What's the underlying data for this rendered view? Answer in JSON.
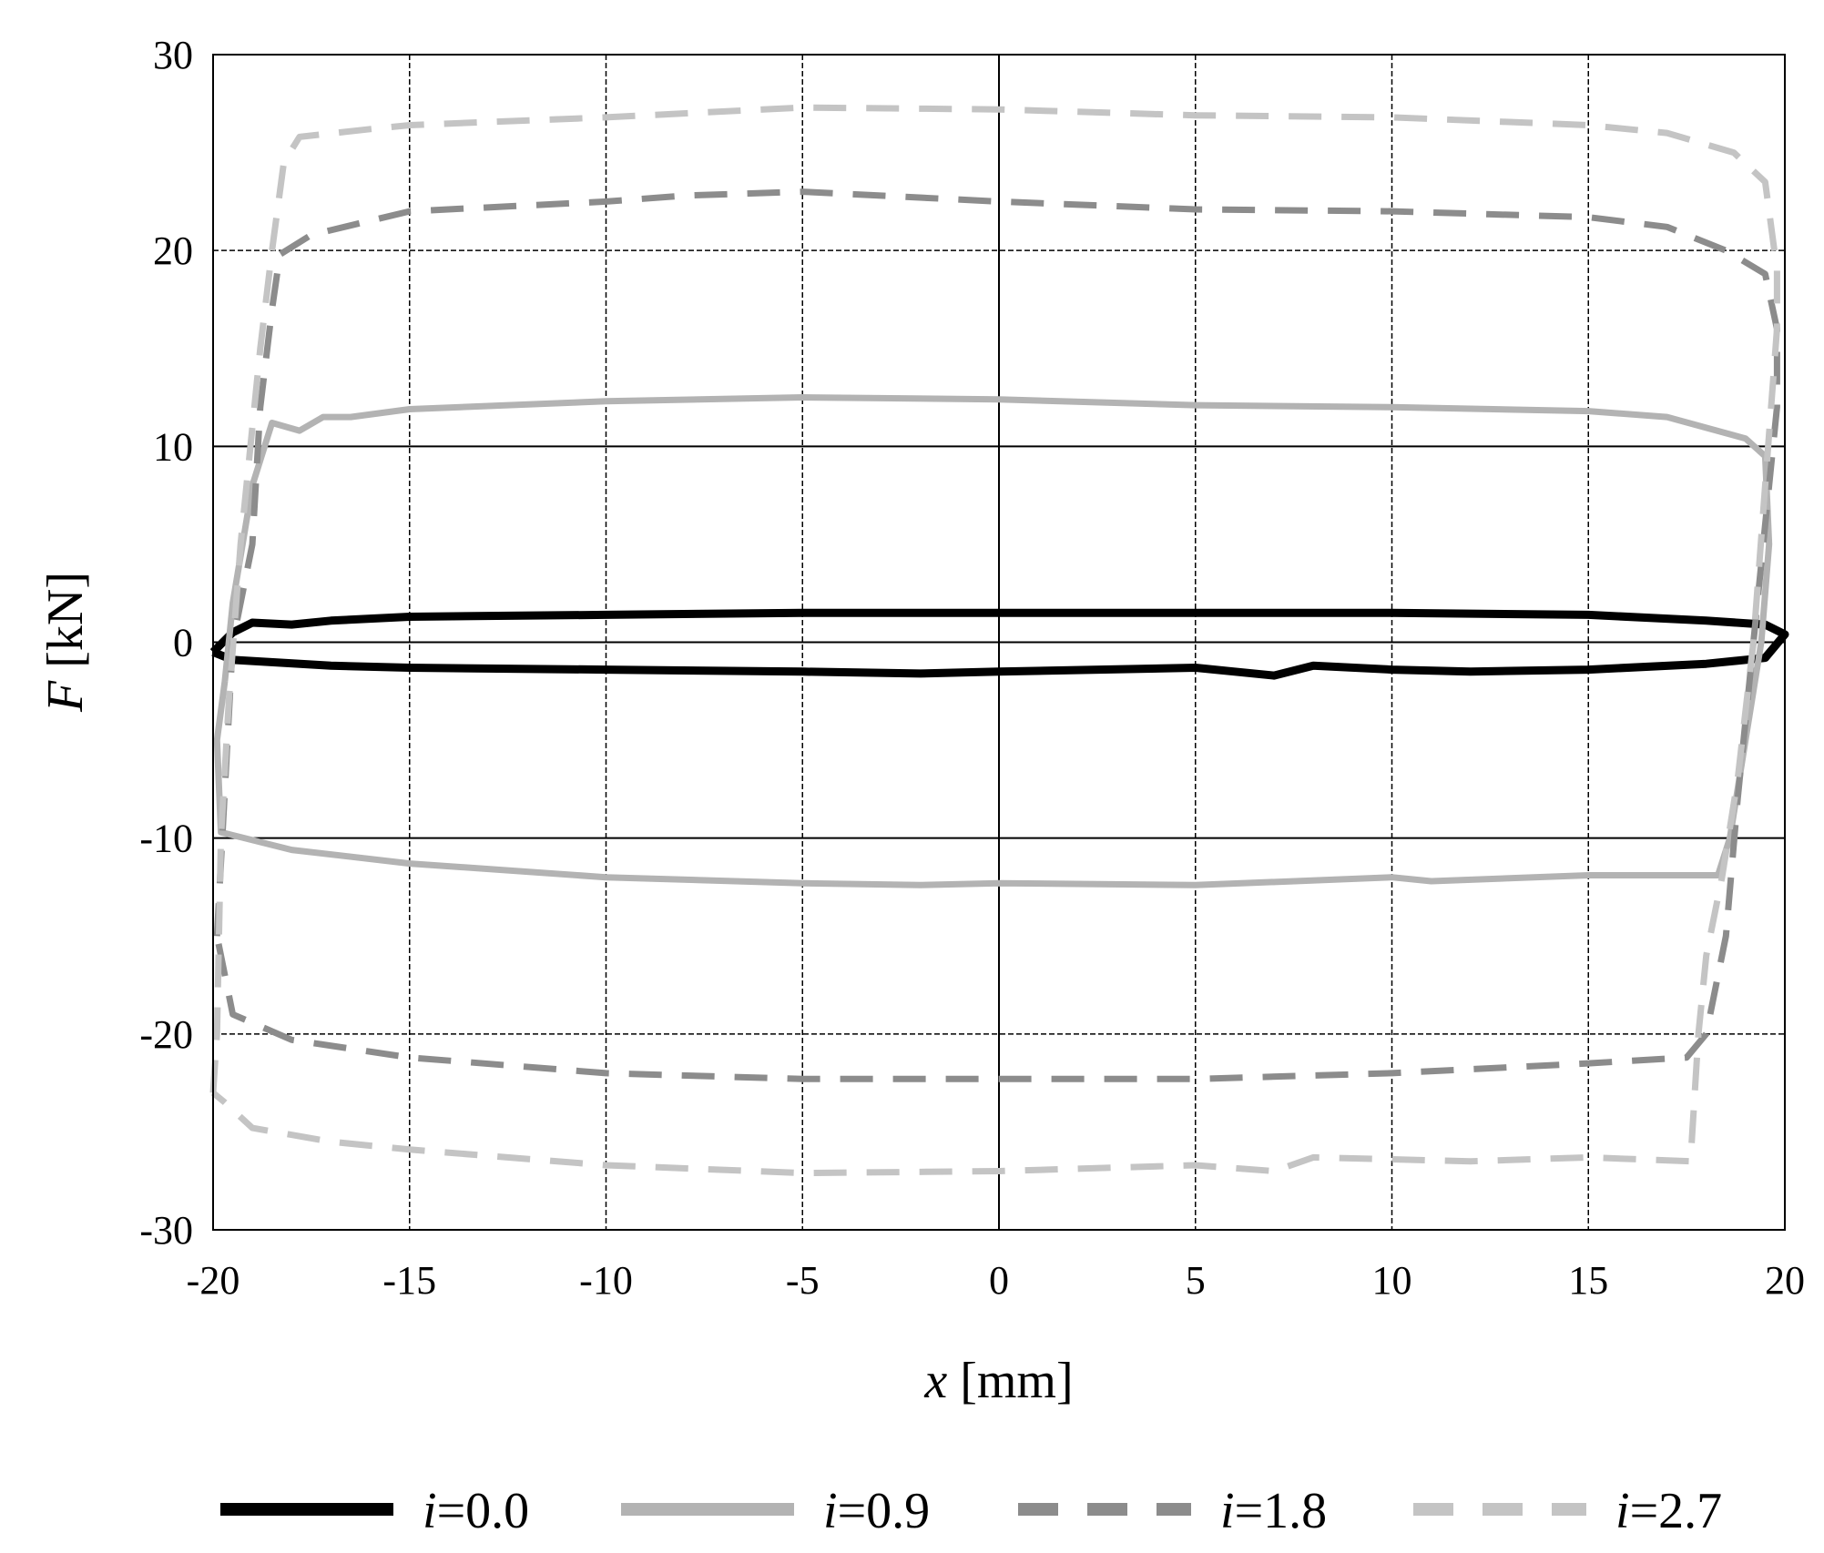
{
  "chart_data": {
    "type": "line",
    "xlabel": {
      "var": "x",
      "unit": " [mm]"
    },
    "ylabel": {
      "var": "F",
      "unit": " [kN]"
    },
    "xlim": [
      -20,
      20
    ],
    "ylim": [
      -30,
      30
    ],
    "xticks": [
      -20,
      -15,
      -10,
      -5,
      0,
      5,
      10,
      15,
      20
    ],
    "yticks": [
      -30,
      -20,
      -10,
      0,
      10,
      20,
      30
    ],
    "grid": true,
    "legend_placement": "bottom",
    "series": [
      {
        "name": "=0.0",
        "name_var": "i",
        "color": "#000000",
        "style": "solid",
        "points": [
          [
            -20,
            -0.5
          ],
          [
            -19.5,
            0.5
          ],
          [
            -19,
            1.0
          ],
          [
            -18,
            0.9
          ],
          [
            -17,
            1.1
          ],
          [
            -15,
            1.3
          ],
          [
            -10,
            1.4
          ],
          [
            -5,
            1.5
          ],
          [
            0,
            1.5
          ],
          [
            5,
            1.5
          ],
          [
            10,
            1.5
          ],
          [
            15,
            1.4
          ],
          [
            18,
            1.1
          ],
          [
            19.5,
            0.9
          ],
          [
            20,
            0.4
          ],
          [
            19.5,
            -0.8
          ],
          [
            18,
            -1.1
          ],
          [
            15,
            -1.4
          ],
          [
            12,
            -1.5
          ],
          [
            10,
            -1.4
          ],
          [
            8,
            -1.2
          ],
          [
            7,
            -1.7
          ],
          [
            6,
            -1.5
          ],
          [
            5,
            -1.3
          ],
          [
            0,
            -1.5
          ],
          [
            -2,
            -1.6
          ],
          [
            -5,
            -1.5
          ],
          [
            -10,
            -1.4
          ],
          [
            -15,
            -1.3
          ],
          [
            -17,
            -1.2
          ],
          [
            -19.5,
            -0.9
          ],
          [
            -20,
            -0.5
          ]
        ]
      },
      {
        "name": "=0.9",
        "name_var": "i",
        "color": "#b3b3b3",
        "style": "solid",
        "points": [
          [
            -19.7,
            -2
          ],
          [
            -19.5,
            2
          ],
          [
            -19,
            8
          ],
          [
            -18.5,
            11.2
          ],
          [
            -17.8,
            10.8
          ],
          [
            -17.2,
            11.5
          ],
          [
            -16.5,
            11.5
          ],
          [
            -15,
            11.9
          ],
          [
            -10,
            12.3
          ],
          [
            -5,
            12.5
          ],
          [
            0,
            12.4
          ],
          [
            5,
            12.1
          ],
          [
            10,
            12
          ],
          [
            15,
            11.8
          ],
          [
            17,
            11.5
          ],
          [
            19,
            10.4
          ],
          [
            19.5,
            9.5
          ],
          [
            19.6,
            5
          ],
          [
            19.4,
            0
          ],
          [
            19.0,
            -5
          ],
          [
            18.6,
            -10
          ],
          [
            18.3,
            -11.9
          ],
          [
            15,
            -11.9
          ],
          [
            11,
            -12.2
          ],
          [
            10,
            -12
          ],
          [
            5,
            -12.4
          ],
          [
            0,
            -12.3
          ],
          [
            -2,
            -12.4
          ],
          [
            -5,
            -12.3
          ],
          [
            -10,
            -12
          ],
          [
            -15,
            -11.3
          ],
          [
            -18,
            -10.6
          ],
          [
            -19.8,
            -9.7
          ],
          [
            -19.9,
            -5
          ],
          [
            -19.7,
            -2
          ]
        ]
      },
      {
        "name": "=1.8",
        "name_var": "i",
        "color": "#8c8c8c",
        "style": "dashed",
        "points": [
          [
            -19.9,
            -15
          ],
          [
            -19.5,
            0
          ],
          [
            -19,
            5
          ],
          [
            -18.8,
            12
          ],
          [
            -18.5,
            17
          ],
          [
            -18.3,
            19.8
          ],
          [
            -17.5,
            20.8
          ],
          [
            -15,
            22
          ],
          [
            -12,
            22.3
          ],
          [
            -10,
            22.5
          ],
          [
            -8,
            22.8
          ],
          [
            -5,
            23
          ],
          [
            0,
            22.5
          ],
          [
            5,
            22.1
          ],
          [
            10,
            22
          ],
          [
            15,
            21.7
          ],
          [
            17,
            21.2
          ],
          [
            18.5,
            20
          ],
          [
            19.5,
            18.8
          ],
          [
            19.8,
            16
          ],
          [
            19.8,
            12
          ],
          [
            19.6,
            8
          ],
          [
            19.2,
            0
          ],
          [
            18.8,
            -8
          ],
          [
            18.5,
            -15
          ],
          [
            18.0,
            -20
          ],
          [
            17.5,
            -21.2
          ],
          [
            15,
            -21.5
          ],
          [
            10,
            -22
          ],
          [
            5,
            -22.3
          ],
          [
            0,
            -22.3
          ],
          [
            -5,
            -22.3
          ],
          [
            -10,
            -22
          ],
          [
            -15,
            -21.2
          ],
          [
            -18,
            -20.3
          ],
          [
            -19.5,
            -19
          ],
          [
            -19.9,
            -15
          ]
        ]
      },
      {
        "name": "=2.7",
        "name_var": "i",
        "color": "#c4c4c4",
        "style": "dashed",
        "points": [
          [
            -20,
            -23
          ],
          [
            -19.9,
            -20
          ],
          [
            -19.8,
            -10
          ],
          [
            -19.6,
            -3
          ],
          [
            -19.3,
            5
          ],
          [
            -18.8,
            15
          ],
          [
            -18.5,
            20
          ],
          [
            -18.2,
            24.5
          ],
          [
            -17.8,
            25.8
          ],
          [
            -16,
            26.2
          ],
          [
            -15,
            26.4
          ],
          [
            -10,
            26.8
          ],
          [
            -5,
            27.3
          ],
          [
            0,
            27.2
          ],
          [
            5,
            26.9
          ],
          [
            10,
            26.8
          ],
          [
            15,
            26.4
          ],
          [
            17,
            26
          ],
          [
            18.7,
            25
          ],
          [
            19.5,
            23.5
          ],
          [
            19.8,
            19
          ],
          [
            19.8,
            16
          ],
          [
            19.5,
            8
          ],
          [
            19.2,
            0
          ],
          [
            18.8,
            -7
          ],
          [
            18.4,
            -12
          ],
          [
            18.0,
            -16
          ],
          [
            17.8,
            -20
          ],
          [
            17.6,
            -26.5
          ],
          [
            15,
            -26.3
          ],
          [
            12,
            -26.5
          ],
          [
            8,
            -26.3
          ],
          [
            7,
            -27
          ],
          [
            5,
            -26.7
          ],
          [
            0,
            -27
          ],
          [
            -5,
            -27.1
          ],
          [
            -10,
            -26.7
          ],
          [
            -15,
            -25.9
          ],
          [
            -17,
            -25.5
          ],
          [
            -19,
            -24.8
          ],
          [
            -19.7,
            -23.5
          ],
          [
            -20,
            -23
          ]
        ]
      }
    ]
  }
}
